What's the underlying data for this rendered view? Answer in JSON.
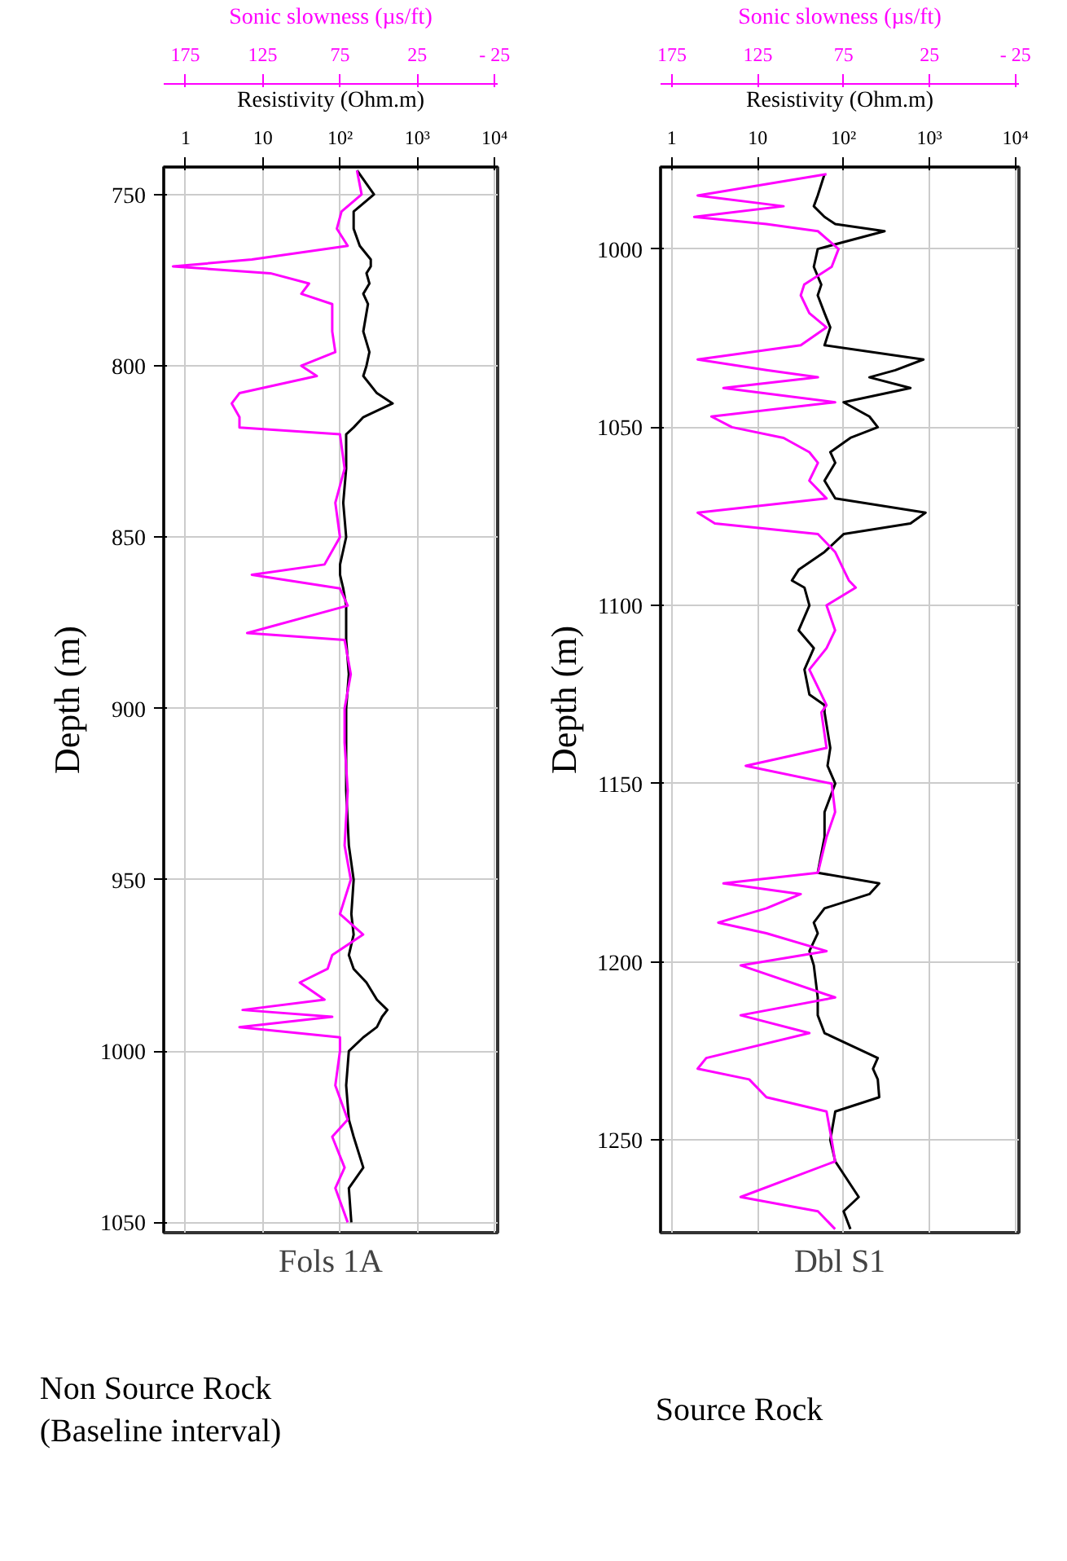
{
  "chart_data": [
    {
      "type": "line",
      "title": "Fols 1A",
      "xlabel": "Resistivity (Ohm.m)",
      "x2label": "Sonic slowness (µs/ft)",
      "ylabel": "Depth (m)",
      "log": "x",
      "grid": true,
      "xlim": [
        0.52,
        11000
      ],
      "xticks": [
        1,
        10,
        {
          "value": 100,
          "label": "10²"
        },
        {
          "value": 1000,
          "label": "10³"
        },
        {
          "value": 10000,
          "label": "10⁴"
        }
      ],
      "x2lim": [
        189,
        -27
      ],
      "x2ticks": [
        175,
        125,
        75,
        25,
        {
          "value": -25,
          "label": "- 25"
        }
      ],
      "ylim": [
        1053,
        742
      ],
      "yticks": [
        750,
        800,
        850,
        900,
        950,
        1000,
        1050
      ],
      "series": [
        {
          "color": "#000000",
          "x": [
            166,
            275,
            150,
            150,
            180,
            250,
            250,
            220,
            240,
            200,
            230,
            200,
            240,
            220,
            200,
            300,
            480,
            200,
            150,
            120,
            120,
            110,
            120,
            100,
            100,
            110,
            120,
            120,
            120,
            130,
            120,
            120,
            120,
            130,
            150,
            140,
            150,
            130,
            150,
            220,
            300,
            410,
            350,
            300,
            200,
            130,
            120,
            130,
            150,
            200,
            130,
            140
          ],
          "values": [
            743,
            750,
            755,
            760,
            765,
            769,
            771,
            773,
            776,
            779,
            782,
            790,
            796,
            800,
            803,
            808,
            811,
            815,
            818,
            820,
            830,
            840,
            850,
            858,
            861,
            865,
            870,
            878,
            880,
            890,
            900,
            910,
            924,
            940,
            950,
            960,
            966,
            972,
            976,
            980,
            985,
            988,
            990,
            993,
            996,
            1000,
            1010,
            1020,
            1025,
            1034,
            1040,
            1050
          ]
        },
        {
          "color": "#ff00ff",
          "axis": "x2",
          "x": [
            64,
            61,
            74,
            77,
            70,
            132,
            183,
            120,
            95,
            100,
            80,
            80,
            78,
            100,
            90,
            140,
            145,
            140,
            140,
            75,
            72,
            78,
            75,
            85,
            132,
            75,
            70,
            135,
            72,
            68,
            72,
            72,
            70,
            72,
            68,
            75,
            60,
            80,
            83,
            101,
            85,
            138,
            80,
            140,
            75,
            75,
            78,
            70,
            80,
            72,
            78,
            70
          ],
          "values": [
            743,
            750,
            755,
            760,
            765,
            769,
            771,
            773,
            776,
            779,
            782,
            790,
            796,
            800,
            803,
            808,
            811,
            815,
            818,
            820,
            830,
            840,
            850,
            858,
            861,
            865,
            870,
            878,
            880,
            890,
            900,
            910,
            924,
            940,
            950,
            960,
            966,
            972,
            976,
            980,
            985,
            988,
            990,
            993,
            996,
            1000,
            1010,
            1020,
            1025,
            1034,
            1040,
            1050
          ]
        }
      ]
    },
    {
      "type": "line",
      "title": "Dbl S1",
      "xlabel": "Resistivity (Ohm.m)",
      "x2label": "Sonic slowness (µs/ft)",
      "ylabel": "Depth (m)",
      "log": "x",
      "grid": true,
      "xlim": [
        0.74,
        11000
      ],
      "xticks": [
        1,
        10,
        {
          "value": 100,
          "label": "10²"
        },
        {
          "value": 1000,
          "label": "10³"
        },
        {
          "value": 10000,
          "label": "10⁴"
        }
      ],
      "x2lim": [
        181.6,
        -27
      ],
      "x2ticks": [
        175,
        125,
        75,
        25,
        {
          "value": -25,
          "label": "- 25"
        }
      ],
      "ylim": [
        1276,
        977
      ],
      "yticks": [
        1000,
        1050,
        1100,
        1150,
        1200,
        1250
      ],
      "series": [
        {
          "color": "#000000",
          "x": [
            60,
            50,
            45,
            60,
            80,
            300,
            50,
            45,
            55,
            50,
            60,
            70,
            60,
            850,
            400,
            200,
            600,
            100,
            200,
            250,
            120,
            70,
            80,
            60,
            80,
            900,
            600,
            100,
            60,
            30,
            25,
            35,
            40,
            30,
            45,
            35,
            40,
            60,
            60,
            70,
            65,
            80,
            60,
            60,
            50,
            260,
            200,
            60,
            45,
            50,
            40,
            45,
            50,
            50,
            60,
            250,
            220,
            250,
            260,
            80,
            70,
            80,
            150,
            100,
            120
          ],
          "values": [
            979,
            985,
            988,
            991,
            993,
            995,
            1000,
            1005,
            1010,
            1013,
            1018,
            1022,
            1027,
            1031,
            1034,
            1036,
            1039,
            1043,
            1047,
            1050,
            1053,
            1057,
            1060,
            1065,
            1070,
            1074,
            1077,
            1080,
            1085,
            1090,
            1093,
            1095,
            1100,
            1107,
            1112,
            1118,
            1125,
            1128,
            1130,
            1140,
            1145,
            1150,
            1158,
            1165,
            1175,
            1178,
            1181,
            1185,
            1189,
            1192,
            1197,
            1201,
            1210,
            1215,
            1220,
            1227,
            1230,
            1233,
            1238,
            1242,
            1250,
            1256,
            1266,
            1270,
            1275
          ]
        },
        {
          "color": "#ff00ff",
          "axis": "x2",
          "x": [
            85,
            160,
            110,
            162,
            120,
            90,
            78,
            82,
            98,
            100,
            95,
            85,
            100,
            160,
            120,
            90,
            145,
            80,
            152,
            140,
            110,
            95,
            90,
            95,
            85,
            160,
            150,
            90,
            80,
            75,
            72,
            68,
            85,
            80,
            85,
            95,
            88,
            85,
            88,
            85,
            132,
            82,
            80,
            85,
            90,
            145,
            100,
            120,
            148,
            120,
            85,
            135,
            80,
            135,
            95,
            155,
            160,
            130,
            120,
            85,
            82,
            80,
            135,
            90,
            80
          ],
          "values": [
            979,
            985,
            988,
            991,
            993,
            995,
            1000,
            1005,
            1010,
            1013,
            1018,
            1022,
            1027,
            1031,
            1034,
            1036,
            1039,
            1043,
            1047,
            1050,
            1053,
            1057,
            1060,
            1065,
            1070,
            1074,
            1077,
            1080,
            1085,
            1090,
            1093,
            1095,
            1100,
            1107,
            1112,
            1118,
            1125,
            1128,
            1130,
            1140,
            1145,
            1150,
            1158,
            1165,
            1175,
            1178,
            1181,
            1185,
            1189,
            1192,
            1197,
            1201,
            1210,
            1215,
            1220,
            1227,
            1230,
            1233,
            1238,
            1242,
            1250,
            1256,
            1266,
            1270,
            1275
          ]
        }
      ]
    },
    {
      "type": "other",
      "annotations": [
        "Non Source Rock\n(Baseline interval)",
        "Source Rock"
      ]
    }
  ]
}
